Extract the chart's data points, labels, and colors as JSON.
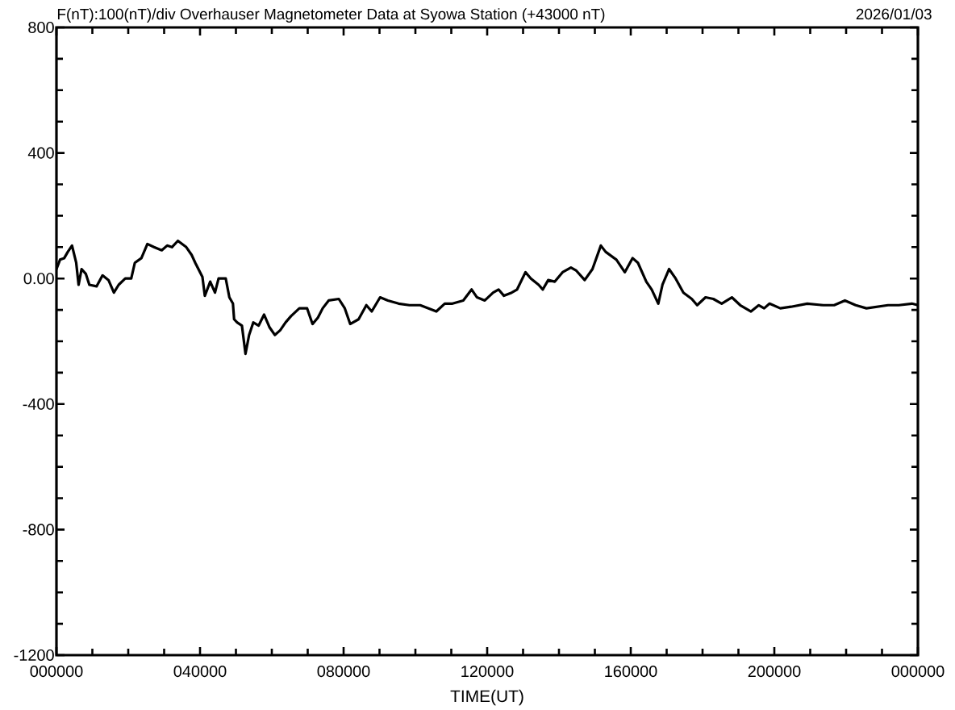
{
  "chart_data": {
    "type": "line",
    "title": "F(nT):100(nT)/div  Overhauser Magnetometer Data at Syowa Station (+43000 nT)",
    "subtitle": "2026/01/03",
    "xlabel": "TIME(UT)",
    "x": [
      "2026-01-03T00:00",
      "2026-01-03T00:06",
      "2026-01-03T00:13",
      "2026-01-03T00:19",
      "2026-01-03T00:26",
      "2026-01-03T00:33",
      "2026-01-03T00:37",
      "2026-01-03T00:42",
      "2026-01-03T00:49",
      "2026-01-03T00:55",
      "2026-01-03T01:07",
      "2026-01-03T01:17",
      "2026-01-03T01:27",
      "2026-01-03T01:36",
      "2026-01-03T01:44",
      "2026-01-03T01:55",
      "2026-01-03T02:05",
      "2026-01-03T02:11",
      "2026-01-03T02:22",
      "2026-01-03T02:32",
      "2026-01-03T02:43",
      "2026-01-03T02:56",
      "2026-01-03T03:05",
      "2026-01-03T03:13",
      "2026-01-03T03:23",
      "2026-01-03T03:37",
      "2026-01-03T03:46",
      "2026-01-03T03:52",
      "2026-01-03T04:04",
      "2026-01-03T04:08",
      "2026-01-03T04:17",
      "2026-01-03T04:25",
      "2026-01-03T04:31",
      "2026-01-03T04:43",
      "2026-01-03T04:49",
      "2026-01-03T04:55",
      "2026-01-03T04:57",
      "2026-01-03T05:02",
      "2026-01-03T05:10",
      "2026-01-03T05:16",
      "2026-01-03T05:22",
      "2026-01-03T05:29",
      "2026-01-03T05:38",
      "2026-01-03T05:47",
      "2026-01-03T05:56",
      "2026-01-03T06:05",
      "2026-01-03T06:14",
      "2026-01-03T06:23",
      "2026-01-03T06:32",
      "2026-01-03T06:46",
      "2026-01-03T06:59",
      "2026-01-03T07:08",
      "2026-01-03T07:17",
      "2026-01-03T07:25",
      "2026-01-03T07:35",
      "2026-01-03T07:52",
      "2026-01-03T08:02",
      "2026-01-03T08:11",
      "2026-01-03T08:25",
      "2026-01-03T08:38",
      "2026-01-03T08:47",
      "2026-01-03T09:01",
      "2026-01-03T09:14",
      "2026-01-03T09:32",
      "2026-01-03T09:50",
      "2026-01-03T10:08",
      "2026-01-03T10:22",
      "2026-01-03T10:35",
      "2026-01-03T10:49",
      "2026-01-03T11:02",
      "2026-01-03T11:20",
      "2026-01-03T11:34",
      "2026-01-03T11:43",
      "2026-01-03T11:56",
      "2026-01-03T12:10",
      "2026-01-03T12:19",
      "2026-01-03T12:28",
      "2026-01-03T12:41",
      "2026-01-03T12:50",
      "2026-01-03T13:04",
      "2026-01-03T13:13",
      "2026-01-03T13:26",
      "2026-01-03T13:33",
      "2026-01-03T13:42",
      "2026-01-03T13:53",
      "2026-01-03T14:06",
      "2026-01-03T14:20",
      "2026-01-03T14:29",
      "2026-01-03T14:43",
      "2026-01-03T14:56",
      "2026-01-03T15:10",
      "2026-01-03T15:18",
      "2026-01-03T15:36",
      "2026-01-03T15:50",
      "2026-01-03T16:03",
      "2026-01-03T16:12",
      "2026-01-03T16:26",
      "2026-01-03T16:35",
      "2026-01-03T16:46",
      "2026-01-03T16:53",
      "2026-01-03T17:04",
      "2026-01-03T17:15",
      "2026-01-03T17:28",
      "2026-01-03T17:42",
      "2026-01-03T17:51",
      "2026-01-03T18:05",
      "2026-01-03T18:18",
      "2026-01-03T18:32",
      "2026-01-03T18:49",
      "2026-01-03T19:03",
      "2026-01-03T19:21",
      "2026-01-03T19:34",
      "2026-01-03T19:43",
      "2026-01-03T19:52",
      "2026-01-03T20:10",
      "2026-01-03T20:28",
      "2026-01-03T20:55",
      "2026-01-03T21:22",
      "2026-01-03T21:40",
      "2026-01-03T21:58",
      "2026-01-03T22:16",
      "2026-01-03T22:34",
      "2026-01-03T22:52",
      "2026-01-03T23:10",
      "2026-01-03T23:28",
      "2026-01-03T23:50",
      "2026-01-04T00:00"
    ],
    "series": [
      {
        "color": "#000000",
        "values": [
          30,
          60,
          65,
          85,
          105,
          50,
          -20,
          30,
          15,
          -20,
          -25,
          10,
          -5,
          -45,
          -20,
          0,
          0,
          50,
          65,
          110,
          100,
          90,
          105,
          100,
          120,
          100,
          75,
          50,
          5,
          -55,
          -10,
          -45,
          0,
          0,
          -60,
          -80,
          -130,
          -140,
          -150,
          -240,
          -180,
          -140,
          -150,
          -115,
          -155,
          -180,
          -165,
          -140,
          -120,
          -95,
          -95,
          -145,
          -125,
          -95,
          -70,
          -65,
          -95,
          -145,
          -130,
          -85,
          -105,
          -60,
          -70,
          -80,
          -85,
          -85,
          -95,
          -105,
          -80,
          -80,
          -70,
          -35,
          -60,
          -70,
          -45,
          -35,
          -55,
          -45,
          -35,
          20,
          0,
          -20,
          -35,
          -5,
          -10,
          20,
          35,
          25,
          -5,
          30,
          105,
          85,
          60,
          20,
          65,
          50,
          -10,
          -35,
          -80,
          -20,
          30,
          0,
          -45,
          -65,
          -85,
          -60,
          -65,
          -80,
          -60,
          -85,
          -105,
          -85,
          -95,
          -80,
          -95,
          -90,
          -80,
          -85,
          -85,
          -70,
          -85,
          -95,
          -90,
          -85,
          -85,
          -80,
          -85
        ]
      }
    ],
    "xlim": [
      "2026-01-03T00:00",
      "2026-01-04T00:00"
    ],
    "ylim": [
      -1200,
      800
    ],
    "xticks": [
      {
        "value": "2026-01-03T00:00",
        "label": "000000"
      },
      {
        "value": "2026-01-03T01:00",
        "label": null
      },
      {
        "value": "2026-01-03T02:00",
        "label": null
      },
      {
        "value": "2026-01-03T03:00",
        "label": null
      },
      {
        "value": "2026-01-03T04:00",
        "label": "040000"
      },
      {
        "value": "2026-01-03T05:00",
        "label": null
      },
      {
        "value": "2026-01-03T06:00",
        "label": null
      },
      {
        "value": "2026-01-03T07:00",
        "label": null
      },
      {
        "value": "2026-01-03T08:00",
        "label": "080000"
      },
      {
        "value": "2026-01-03T09:00",
        "label": null
      },
      {
        "value": "2026-01-03T10:00",
        "label": null
      },
      {
        "value": "2026-01-03T11:00",
        "label": null
      },
      {
        "value": "2026-01-03T12:00",
        "label": "120000"
      },
      {
        "value": "2026-01-03T13:00",
        "label": null
      },
      {
        "value": "2026-01-03T14:00",
        "label": null
      },
      {
        "value": "2026-01-03T15:00",
        "label": null
      },
      {
        "value": "2026-01-03T16:00",
        "label": "160000"
      },
      {
        "value": "2026-01-03T17:00",
        "label": null
      },
      {
        "value": "2026-01-03T18:00",
        "label": null
      },
      {
        "value": "2026-01-03T19:00",
        "label": null
      },
      {
        "value": "2026-01-03T20:00",
        "label": "200000"
      },
      {
        "value": "2026-01-03T21:00",
        "label": null
      },
      {
        "value": "2026-01-03T22:00",
        "label": null
      },
      {
        "value": "2026-01-03T23:00",
        "label": null
      },
      {
        "value": "2026-01-04T00:00",
        "label": "000000"
      }
    ],
    "yticks": [
      -1200,
      {
        "value": -1100,
        "label": null
      },
      {
        "value": -1000,
        "label": null
      },
      {
        "value": -900,
        "label": null
      },
      -800,
      {
        "value": -700,
        "label": null
      },
      {
        "value": -600,
        "label": null
      },
      {
        "value": -500,
        "label": null
      },
      -400,
      {
        "value": -300,
        "label": null
      },
      {
        "value": -200,
        "label": null
      },
      {
        "value": -100,
        "label": null
      },
      {
        "value": 0,
        "label": "0.00"
      },
      {
        "value": 100,
        "label": null
      },
      {
        "value": 200,
        "label": null
      },
      {
        "value": 300,
        "label": null
      },
      400,
      {
        "value": 500,
        "label": null
      },
      {
        "value": 600,
        "label": null
      },
      {
        "value": 700,
        "label": null
      },
      800
    ]
  }
}
